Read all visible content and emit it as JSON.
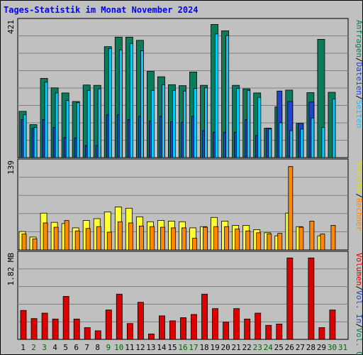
{
  "title": "Tages-Statistik im Monat November 2024",
  "colors": {
    "anfragen": "#0e7a5c",
    "dateien": "#2244cc",
    "seiten": "#00ccff",
    "besuche": "#ffff33",
    "rechner": "#ff8800",
    "volumen": "#dd0000",
    "background": "#c0c0c0"
  },
  "chart_data": [
    {
      "type": "bar",
      "id": "hits-files-pages",
      "ymax_label": "421",
      "ylim": [
        0,
        421
      ],
      "grid": true,
      "right_axis_labels": [
        {
          "text": "Anfragen",
          "color": "#0e7a5c"
        },
        {
          "text": "/",
          "color": "#000000"
        },
        {
          "text": "Dateien",
          "color": "#2244cc"
        },
        {
          "text": "/",
          "color": "#000000"
        },
        {
          "text": "Seiten",
          "color": "#00ccff"
        }
      ],
      "categories": [
        "1",
        "2",
        "3",
        "4",
        "5",
        "6",
        "7",
        "8",
        "9",
        "10",
        "11",
        "12",
        "13",
        "14",
        "15",
        "16",
        "17",
        "18",
        "19",
        "20",
        "21",
        "22",
        "23",
        "24",
        "25",
        "26",
        "27",
        "28",
        "29",
        "30",
        "31"
      ],
      "series": [
        {
          "name": "Anfragen",
          "values": [
            146,
            104,
            250,
            220,
            204,
            177,
            229,
            228,
            350,
            380,
            380,
            370,
            272,
            255,
            230,
            227,
            270,
            228,
            420,
            400,
            228,
            217,
            204,
            93,
            160,
            213,
            108,
            205,
            373,
            206,
            0
          ]
        },
        {
          "name": "Dateien",
          "values": [
            120,
            92,
            120,
            95,
            63,
            62,
            38,
            38,
            135,
            135,
            120,
            130,
            115,
            130,
            113,
            111,
            130,
            85,
            80,
            80,
            80,
            120,
            70,
            93,
            210,
            177,
            108,
            175,
            0,
            0,
            0
          ]
        },
        {
          "name": "Seiten",
          "values": [
            135,
            95,
            238,
            204,
            180,
            173,
            212,
            217,
            344,
            340,
            360,
            337,
            212,
            230,
            212,
            210,
            218,
            220,
            390,
            385,
            218,
            212,
            190,
            90,
            110,
            85,
            90,
            125,
            95,
            185,
            0
          ]
        }
      ]
    },
    {
      "type": "bar",
      "id": "visits-sites",
      "ymax_label": "139",
      "ylim": [
        0,
        139
      ],
      "grid": true,
      "right_axis_labels": [
        {
          "text": "Besuche",
          "color": "#dddd00"
        },
        {
          "text": "/",
          "color": "#000000"
        },
        {
          "text": "Rechner",
          "color": "#ff8800"
        }
      ],
      "categories": [
        "1",
        "2",
        "3",
        "4",
        "5",
        "6",
        "7",
        "8",
        "9",
        "10",
        "11",
        "12",
        "13",
        "14",
        "15",
        "16",
        "17",
        "18",
        "19",
        "20",
        "21",
        "22",
        "23",
        "24",
        "25",
        "26",
        "27",
        "28",
        "29",
        "30",
        "31"
      ],
      "series": [
        {
          "name": "Besuche",
          "values": [
            30,
            21,
            60,
            45,
            43,
            36,
            48,
            51,
            62,
            70,
            68,
            54,
            46,
            48,
            47,
            46,
            36,
            38,
            53,
            47,
            40,
            40,
            33,
            28,
            23,
            60,
            38,
            0,
            23,
            0,
            0
          ]
        },
        {
          "name": "Rechner",
          "values": [
            26,
            18,
            44,
            37,
            48,
            31,
            35,
            38,
            29,
            46,
            44,
            39,
            38,
            37,
            36,
            36,
            19,
            37,
            38,
            38,
            34,
            31,
            28,
            26,
            27,
            136,
            37,
            47,
            26,
            40,
            0
          ]
        }
      ]
    },
    {
      "type": "bar",
      "id": "volume",
      "ymax_label": "1.82 MB",
      "ylim": [
        0,
        1.82
      ],
      "grid": true,
      "right_axis_labels": [
        {
          "text": "Volumen",
          "color": "#dd0000"
        },
        {
          "text": "/",
          "color": "#000000"
        },
        {
          "text": "Vol. In",
          "color": "#2244cc"
        },
        {
          "text": "/",
          "color": "#000000"
        },
        {
          "text": "Vol. Out",
          "color": "#0e7a5c"
        }
      ],
      "categories": [
        "1",
        "2",
        "3",
        "4",
        "5",
        "6",
        "7",
        "8",
        "9",
        "10",
        "11",
        "12",
        "13",
        "14",
        "15",
        "16",
        "17",
        "18",
        "19",
        "20",
        "21",
        "22",
        "23",
        "24",
        "25",
        "26",
        "27",
        "28",
        "29",
        "30",
        "31"
      ],
      "series": [
        {
          "name": "Volumen",
          "values": [
            0.64,
            0.46,
            0.58,
            0.45,
            0.95,
            0.45,
            0.26,
            0.19,
            0.65,
            1.0,
            0.35,
            0.82,
            0.12,
            0.52,
            0.41,
            0.48,
            0.55,
            1.0,
            0.68,
            0.38,
            0.68,
            0.45,
            0.58,
            0.31,
            0.34,
            1.8,
            0.0,
            1.8,
            0.26,
            0.65,
            0.0
          ]
        }
      ]
    }
  ],
  "x_labels": [
    {
      "text": "1",
      "color": "#000000"
    },
    {
      "text": "2",
      "color": "#006600"
    },
    {
      "text": "3",
      "color": "#006600"
    },
    {
      "text": "4",
      "color": "#000000"
    },
    {
      "text": "5",
      "color": "#000000"
    },
    {
      "text": "6",
      "color": "#000000"
    },
    {
      "text": "7",
      "color": "#000000"
    },
    {
      "text": "8",
      "color": "#000000"
    },
    {
      "text": "9",
      "color": "#006600"
    },
    {
      "text": "10",
      "color": "#006600"
    },
    {
      "text": "11",
      "color": "#000000"
    },
    {
      "text": "12",
      "color": "#000000"
    },
    {
      "text": "13",
      "color": "#000000"
    },
    {
      "text": "14",
      "color": "#000000"
    },
    {
      "text": "15",
      "color": "#000000"
    },
    {
      "text": "16",
      "color": "#006600"
    },
    {
      "text": "17",
      "color": "#006600"
    },
    {
      "text": "18",
      "color": "#000000"
    },
    {
      "text": "19",
      "color": "#000000"
    },
    {
      "text": "20",
      "color": "#000000"
    },
    {
      "text": "21",
      "color": "#000000"
    },
    {
      "text": "22",
      "color": "#000000"
    },
    {
      "text": "23",
      "color": "#006600"
    },
    {
      "text": "24",
      "color": "#006600"
    },
    {
      "text": "25",
      "color": "#000000"
    },
    {
      "text": "26",
      "color": "#000000"
    },
    {
      "text": "27",
      "color": "#000000"
    },
    {
      "text": "28",
      "color": "#000000"
    },
    {
      "text": "29",
      "color": "#000000"
    },
    {
      "text": "30",
      "color": "#006600"
    },
    {
      "text": "31",
      "color": "#006600"
    }
  ]
}
